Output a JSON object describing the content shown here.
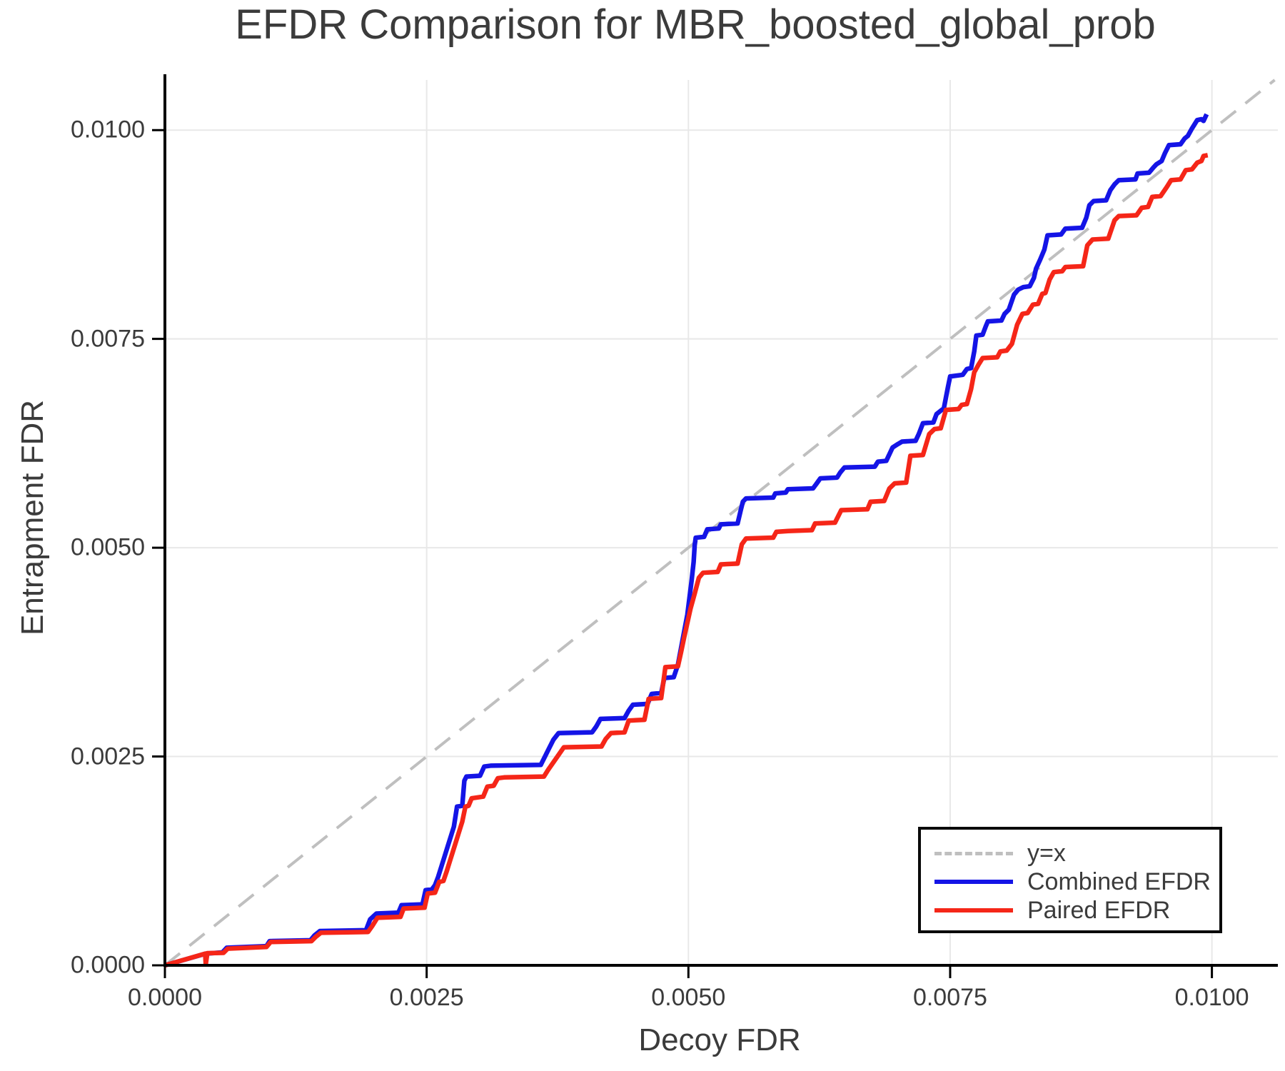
{
  "figure": {
    "background": "#ffffff",
    "text_color": "#3b3b3b",
    "axis_line_color": "#000000",
    "grid_color": "#e8e8e8"
  },
  "chart_data": {
    "type": "line",
    "title": "EFDR Comparison for MBR_boosted_global_prob",
    "xlabel": "Decoy FDR",
    "ylabel": "Entrapment FDR",
    "xlim": [
      0,
      0.01063
    ],
    "ylim": [
      0,
      0.0106
    ],
    "grid": true,
    "legend_position": "lower right",
    "x_ticks": [
      0.0,
      0.0025,
      0.005,
      0.0075,
      0.01
    ],
    "x_tick_labels": [
      "0.0000",
      "0.0025",
      "0.0050",
      "0.0075",
      "0.0100"
    ],
    "y_ticks": [
      0.0,
      0.0025,
      0.005,
      0.0075,
      0.01
    ],
    "y_tick_labels": [
      "0.0000",
      "0.0025",
      "0.0050",
      "0.0075",
      "0.0100"
    ],
    "series": [
      {
        "name": "y=x",
        "color": "#bfbfbf",
        "style": "dashed",
        "width": 4,
        "points": [
          [
            0,
            0
          ],
          [
            0.0106,
            0.0106
          ]
        ]
      },
      {
        "name": "Combined EFDR",
        "color": "#1414e6",
        "style": "solid",
        "width": 6.5,
        "points": [
          [
            0,
            0
          ],
          [
            0.00039,
            0.00014
          ],
          [
            0.00055,
            0.000155
          ],
          [
            0.00059,
            0.00021
          ],
          [
            0.00097,
            0.00023
          ],
          [
            0.001,
            0.00029
          ],
          [
            0.00139,
            0.0003
          ],
          [
            0.00143,
            0.00036
          ],
          [
            0.00148,
            0.00041
          ],
          [
            0.00192,
            0.00042
          ],
          [
            0.00196,
            0.00055
          ],
          [
            0.00202,
            0.00062
          ],
          [
            0.00223,
            0.00063
          ],
          [
            0.00226,
            0.00072
          ],
          [
            0.00246,
            0.00073
          ],
          [
            0.00249,
            0.0009
          ],
          [
            0.00255,
            0.00091
          ],
          [
            0.00258,
            0.00096
          ],
          [
            0.00261,
            0.00106
          ],
          [
            0.00264,
            0.00118
          ],
          [
            0.00267,
            0.0013
          ],
          [
            0.0027,
            0.00142
          ],
          [
            0.00273,
            0.00154
          ],
          [
            0.00276,
            0.00166
          ],
          [
            0.00279,
            0.0019
          ],
          [
            0.00284,
            0.00191
          ],
          [
            0.00286,
            0.00221
          ],
          [
            0.00288,
            0.00226
          ],
          [
            0.00301,
            0.00227
          ],
          [
            0.00305,
            0.00238
          ],
          [
            0.00311,
            0.00239
          ],
          [
            0.00359,
            0.0024
          ],
          [
            0.00363,
            0.0025
          ],
          [
            0.00367,
            0.0026
          ],
          [
            0.00371,
            0.0027
          ],
          [
            0.00376,
            0.00278
          ],
          [
            0.00408,
            0.00279
          ],
          [
            0.00412,
            0.00286
          ],
          [
            0.00416,
            0.00295
          ],
          [
            0.00439,
            0.00296
          ],
          [
            0.00443,
            0.00305
          ],
          [
            0.00447,
            0.00312
          ],
          [
            0.00461,
            0.00313
          ],
          [
            0.00465,
            0.00325
          ],
          [
            0.00474,
            0.00326
          ],
          [
            0.00477,
            0.00344
          ],
          [
            0.00486,
            0.00345
          ],
          [
            0.0049,
            0.0036
          ],
          [
            0.00493,
            0.0038
          ],
          [
            0.00496,
            0.004
          ],
          [
            0.00499,
            0.0042
          ],
          [
            0.00501,
            0.0044
          ],
          [
            0.00503,
            0.0046
          ],
          [
            0.00505,
            0.00483
          ],
          [
            0.00506,
            0.00503
          ],
          [
            0.00507,
            0.00512
          ],
          [
            0.00515,
            0.00513
          ],
          [
            0.00518,
            0.00522
          ],
          [
            0.00529,
            0.00523
          ],
          [
            0.00531,
            0.00528
          ],
          [
            0.00547,
            0.00529
          ],
          [
            0.0055,
            0.00545
          ],
          [
            0.00552,
            0.00555
          ],
          [
            0.00555,
            0.00559
          ],
          [
            0.00581,
            0.0056
          ],
          [
            0.00583,
            0.00565
          ],
          [
            0.00593,
            0.00566
          ],
          [
            0.00595,
            0.0057
          ],
          [
            0.00619,
            0.00571
          ],
          [
            0.00622,
            0.00576
          ],
          [
            0.00626,
            0.00583
          ],
          [
            0.00642,
            0.00584
          ],
          [
            0.00645,
            0.0059
          ],
          [
            0.00649,
            0.00596
          ],
          [
            0.00678,
            0.00597
          ],
          [
            0.00681,
            0.00603
          ],
          [
            0.00689,
            0.00604
          ],
          [
            0.00692,
            0.00612
          ],
          [
            0.00695,
            0.0062
          ],
          [
            0.007,
            0.00624
          ],
          [
            0.00704,
            0.00627
          ],
          [
            0.00717,
            0.00628
          ],
          [
            0.0072,
            0.00636
          ],
          [
            0.00724,
            0.00649
          ],
          [
            0.00734,
            0.0065
          ],
          [
            0.00737,
            0.0066
          ],
          [
            0.00741,
            0.00664
          ],
          [
            0.00744,
            0.00667
          ],
          [
            0.00746,
            0.0068
          ],
          [
            0.00748,
            0.00693
          ],
          [
            0.0075,
            0.00705
          ],
          [
            0.00762,
            0.00707
          ],
          [
            0.00766,
            0.00714
          ],
          [
            0.0077,
            0.00715
          ],
          [
            0.00773,
            0.00735
          ],
          [
            0.00775,
            0.00754
          ],
          [
            0.00781,
            0.00755
          ],
          [
            0.00784,
            0.00765
          ],
          [
            0.00786,
            0.00771
          ],
          [
            0.00799,
            0.00772
          ],
          [
            0.00802,
            0.0078
          ],
          [
            0.00806,
            0.00785
          ],
          [
            0.00811,
            0.00803
          ],
          [
            0.00815,
            0.00809
          ],
          [
            0.0082,
            0.00812
          ],
          [
            0.00826,
            0.00813
          ],
          [
            0.0083,
            0.00823
          ],
          [
            0.00832,
            0.00834
          ],
          [
            0.00836,
            0.00845
          ],
          [
            0.0084,
            0.00857
          ],
          [
            0.00843,
            0.00874
          ],
          [
            0.00856,
            0.00875
          ],
          [
            0.0086,
            0.00882
          ],
          [
            0.00876,
            0.00883
          ],
          [
            0.0088,
            0.00895
          ],
          [
            0.00883,
            0.0091
          ],
          [
            0.00887,
            0.00915
          ],
          [
            0.00899,
            0.00916
          ],
          [
            0.00903,
            0.00928
          ],
          [
            0.00907,
            0.00935
          ],
          [
            0.00911,
            0.0094
          ],
          [
            0.00927,
            0.00941
          ],
          [
            0.00929,
            0.00948
          ],
          [
            0.0094,
            0.00949
          ],
          [
            0.00944,
            0.00955
          ],
          [
            0.00947,
            0.00959
          ],
          [
            0.00952,
            0.00963
          ],
          [
            0.00955,
            0.00972
          ],
          [
            0.00959,
            0.00982
          ],
          [
            0.0097,
            0.00983
          ],
          [
            0.00974,
            0.0099
          ],
          [
            0.00977,
            0.00993
          ],
          [
            0.00981,
            0.01002
          ],
          [
            0.00986,
            0.01012
          ],
          [
            0.0099,
            0.01013
          ],
          [
            0.00992,
            0.01011
          ],
          [
            0.00995,
            0.01019
          ]
        ]
      },
      {
        "name": "Paired EFDR",
        "color": "#f52618",
        "style": "solid",
        "width": 6.5,
        "points": [
          [
            0,
            0
          ],
          [
            0.000385,
            0.00014
          ],
          [
            0.00039,
            1e-05
          ],
          [
            0.000405,
            0.000145
          ],
          [
            0.00056,
            0.00015
          ],
          [
            0.0006,
            0.0002
          ],
          [
            0.00097,
            0.00022
          ],
          [
            0.00101,
            0.00028
          ],
          [
            0.0014,
            0.00029
          ],
          [
            0.00144,
            0.00034
          ],
          [
            0.00149,
            0.00039
          ],
          [
            0.00194,
            0.0004
          ],
          [
            0.00198,
            0.00047
          ],
          [
            0.00203,
            0.00057
          ],
          [
            0.00225,
            0.00058
          ],
          [
            0.00228,
            0.00068
          ],
          [
            0.00248,
            0.00069
          ],
          [
            0.00251,
            0.00086
          ],
          [
            0.00258,
            0.00087
          ],
          [
            0.00262,
            0.001
          ],
          [
            0.00266,
            0.00101
          ],
          [
            0.00269,
            0.00112
          ],
          [
            0.00272,
            0.00124
          ],
          [
            0.00275,
            0.00136
          ],
          [
            0.00278,
            0.00148
          ],
          [
            0.00281,
            0.0016
          ],
          [
            0.00284,
            0.00172
          ],
          [
            0.00287,
            0.0019
          ],
          [
            0.0029,
            0.00191
          ],
          [
            0.00293,
            0.002
          ],
          [
            0.00304,
            0.00202
          ],
          [
            0.00308,
            0.00214
          ],
          [
            0.00314,
            0.00215
          ],
          [
            0.00318,
            0.00224
          ],
          [
            0.00324,
            0.00225
          ],
          [
            0.00362,
            0.00226
          ],
          [
            0.00366,
            0.00234
          ],
          [
            0.00371,
            0.00243
          ],
          [
            0.00376,
            0.00252
          ],
          [
            0.00381,
            0.00261
          ],
          [
            0.00417,
            0.00262
          ],
          [
            0.00421,
            0.00271
          ],
          [
            0.00426,
            0.00278
          ],
          [
            0.00439,
            0.00279
          ],
          [
            0.00443,
            0.00293
          ],
          [
            0.00458,
            0.00294
          ],
          [
            0.00462,
            0.00319
          ],
          [
            0.00474,
            0.0032
          ],
          [
            0.00478,
            0.00357
          ],
          [
            0.0049,
            0.00358
          ],
          [
            0.00493,
            0.00375
          ],
          [
            0.00496,
            0.00393
          ],
          [
            0.00499,
            0.0041
          ],
          [
            0.00502,
            0.00427
          ],
          [
            0.00506,
            0.00445
          ],
          [
            0.0051,
            0.00464
          ],
          [
            0.00514,
            0.0047
          ],
          [
            0.00528,
            0.00471
          ],
          [
            0.00531,
            0.0048
          ],
          [
            0.00547,
            0.00481
          ],
          [
            0.00551,
            0.00504
          ],
          [
            0.00555,
            0.00511
          ],
          [
            0.00581,
            0.00512
          ],
          [
            0.00584,
            0.00519
          ],
          [
            0.00595,
            0.0052
          ],
          [
            0.00618,
            0.00521
          ],
          [
            0.00621,
            0.00529
          ],
          [
            0.0064,
            0.0053
          ],
          [
            0.00646,
            0.00545
          ],
          [
            0.00671,
            0.00546
          ],
          [
            0.00674,
            0.00555
          ],
          [
            0.00687,
            0.00556
          ],
          [
            0.00692,
            0.00571
          ],
          [
            0.00697,
            0.00577
          ],
          [
            0.00708,
            0.00578
          ],
          [
            0.00712,
            0.0061
          ],
          [
            0.00724,
            0.00611
          ],
          [
            0.0073,
            0.00636
          ],
          [
            0.00735,
            0.00642
          ],
          [
            0.00741,
            0.00643
          ],
          [
            0.00746,
            0.00665
          ],
          [
            0.00758,
            0.00666
          ],
          [
            0.00761,
            0.00671
          ],
          [
            0.00766,
            0.00672
          ],
          [
            0.0077,
            0.0069
          ],
          [
            0.00773,
            0.0071
          ],
          [
            0.00777,
            0.00719
          ],
          [
            0.00781,
            0.00727
          ],
          [
            0.00795,
            0.00728
          ],
          [
            0.00798,
            0.00735
          ],
          [
            0.00804,
            0.00736
          ],
          [
            0.00809,
            0.00744
          ],
          [
            0.00814,
            0.00767
          ],
          [
            0.00819,
            0.0078
          ],
          [
            0.00824,
            0.00781
          ],
          [
            0.00829,
            0.00791
          ],
          [
            0.00834,
            0.00792
          ],
          [
            0.00838,
            0.00804
          ],
          [
            0.00841,
            0.00805
          ],
          [
            0.00845,
            0.00821
          ],
          [
            0.00849,
            0.0083
          ],
          [
            0.00857,
            0.00831
          ],
          [
            0.0086,
            0.00836
          ],
          [
            0.00877,
            0.00837
          ],
          [
            0.00881,
            0.00862
          ],
          [
            0.00886,
            0.00869
          ],
          [
            0.00901,
            0.0087
          ],
          [
            0.00907,
            0.00892
          ],
          [
            0.00911,
            0.00897
          ],
          [
            0.00928,
            0.00898
          ],
          [
            0.00933,
            0.00907
          ],
          [
            0.00939,
            0.00908
          ],
          [
            0.00943,
            0.0092
          ],
          [
            0.00951,
            0.00921
          ],
          [
            0.00957,
            0.00932
          ],
          [
            0.00961,
            0.0094
          ],
          [
            0.0097,
            0.00941
          ],
          [
            0.00975,
            0.00952
          ],
          [
            0.00981,
            0.00953
          ],
          [
            0.00986,
            0.00961
          ],
          [
            0.0099,
            0.00963
          ],
          [
            0.00992,
            0.00969
          ],
          [
            0.00996,
            0.0097
          ]
        ]
      }
    ]
  },
  "legend": {
    "entries": [
      {
        "label": "y=x"
      },
      {
        "label": "Combined EFDR"
      },
      {
        "label": "Paired EFDR"
      }
    ]
  }
}
